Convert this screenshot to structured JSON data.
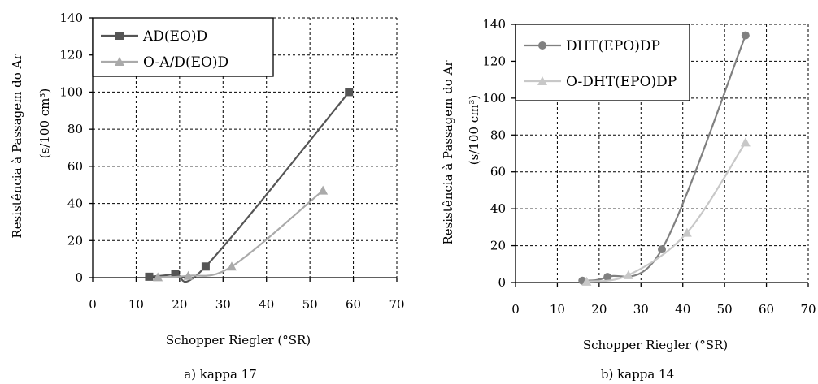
{
  "chart_data": [
    {
      "type": "line",
      "caption": "a) kappa 17",
      "xlabel": "Schopper Riegler (°SR)",
      "ylabel_line1": "Resistência à Passagem do Ar",
      "ylabel_line2": "(s/100 cm³)",
      "xlim": [
        0,
        70
      ],
      "ylim": [
        0,
        140
      ],
      "xticks": [
        0,
        10,
        20,
        30,
        40,
        50,
        60,
        70
      ],
      "yticks": [
        0,
        20,
        40,
        60,
        80,
        100,
        120,
        140
      ],
      "grid": true,
      "legend_position": "top-left",
      "series": [
        {
          "name": "AD(EO)D",
          "color": "#555555",
          "marker": "square",
          "x": [
            13,
            19,
            26,
            59
          ],
          "y": [
            0.5,
            2,
            6,
            100
          ]
        },
        {
          "name": "O-A/D(EO)D",
          "color": "#aaaaaa",
          "marker": "triangle",
          "x": [
            15,
            22,
            32,
            53
          ],
          "y": [
            0.3,
            1,
            6,
            47
          ]
        }
      ]
    },
    {
      "type": "line",
      "caption": "b) kappa 14",
      "xlabel": "Schopper Riegler (°SR)",
      "ylabel_line1": "Resistência à Passagem do Ar",
      "ylabel_line2": "(s/100 cm³)",
      "xlim": [
        0,
        70
      ],
      "ylim": [
        0,
        140
      ],
      "xticks": [
        0,
        10,
        20,
        30,
        40,
        50,
        60,
        70
      ],
      "yticks": [
        0,
        20,
        40,
        60,
        80,
        100,
        120,
        140
      ],
      "grid": true,
      "legend_position": "top-left",
      "series": [
        {
          "name": "DHT(EPO)DP",
          "color": "#808080",
          "marker": "diamond",
          "x": [
            16,
            22,
            35,
            55
          ],
          "y": [
            1,
            3,
            18,
            134
          ]
        },
        {
          "name": "O-DHT(EPO)DP",
          "color": "#c8c8c8",
          "marker": "triangle",
          "x": [
            17,
            27,
            41,
            55
          ],
          "y": [
            0.5,
            4,
            27,
            76
          ]
        }
      ]
    }
  ]
}
